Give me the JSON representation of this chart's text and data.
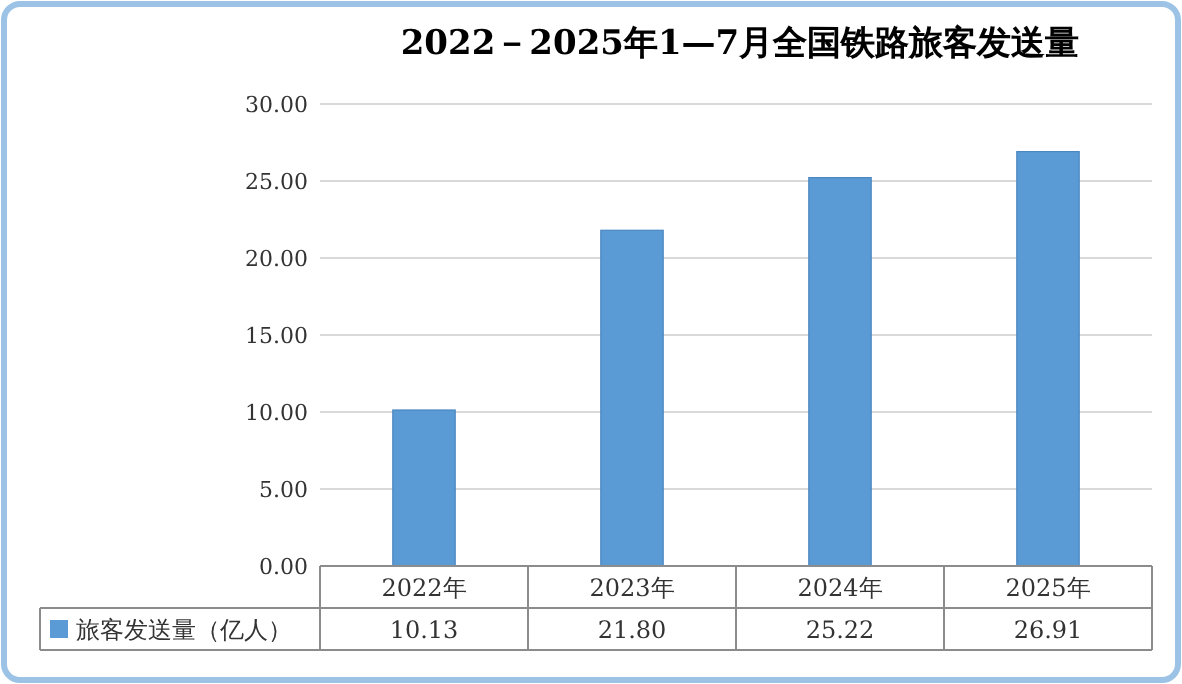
{
  "chart_data": {
    "type": "bar",
    "title": "2022－2025年1—7月全国铁路旅客发送量",
    "categories": [
      "2022年",
      "2023年",
      "2024年",
      "2025年"
    ],
    "series": [
      {
        "name": "旅客发送量（亿人）",
        "color": "#5b9bd5",
        "values": [
          10.13,
          21.8,
          25.22,
          26.91
        ],
        "value_labels": [
          "10.13",
          "21.80",
          "25.22",
          "26.91"
        ]
      }
    ],
    "ylim": [
      0,
      30
    ],
    "yticks": [
      {
        "value": 0,
        "label": "0.00"
      },
      {
        "value": 5,
        "label": "5.00"
      },
      {
        "value": 10,
        "label": "10.00"
      },
      {
        "value": 15,
        "label": "15.00"
      },
      {
        "value": 20,
        "label": "20.00"
      },
      {
        "value": 25,
        "label": "25.00"
      },
      {
        "value": 30,
        "label": "30.00"
      }
    ],
    "grid": "y",
    "legend": "bottom"
  }
}
